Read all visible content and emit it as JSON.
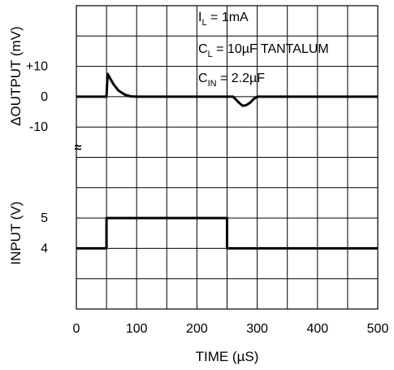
{
  "chart_data": {
    "type": "line",
    "xlabel": "TIME (µS)",
    "xlim": [
      0,
      500
    ],
    "x_ticks": [
      "0",
      "100",
      "200",
      "300",
      "400",
      "500"
    ],
    "grid": true,
    "break_symbol": "≈",
    "top_panel": {
      "ylabel": "ΔOUTPUT (mV)",
      "y_ticks": [
        "+10",
        "0",
        "-10"
      ],
      "series": [
        {
          "x": [
            0,
            50,
            51,
            52,
            56,
            62,
            70,
            80,
            90,
            100,
            260,
            265,
            270,
            276,
            282,
            288,
            294,
            300,
            500
          ],
          "y": [
            0,
            0,
            4,
            7.5,
            6,
            4,
            2,
            0.7,
            0.1,
            0,
            0,
            -1,
            -2,
            -3,
            -2.8,
            -2,
            -0.8,
            0,
            0
          ]
        }
      ],
      "annotations": [
        {
          "main": "I",
          "sub": "L",
          "rest": " = 1mA"
        },
        {
          "main": "C",
          "sub": "L",
          "rest": " = 10µF TANTALUM"
        },
        {
          "main": "C",
          "sub": "IN",
          "rest": " = 2.2µF"
        }
      ]
    },
    "bottom_panel": {
      "ylabel": "INPUT (V)",
      "y_ticks": [
        "5",
        "4"
      ],
      "series": [
        {
          "x": [
            0,
            50,
            50,
            250,
            250,
            500
          ],
          "y": [
            4,
            4,
            5,
            5,
            4,
            4
          ]
        }
      ]
    }
  }
}
